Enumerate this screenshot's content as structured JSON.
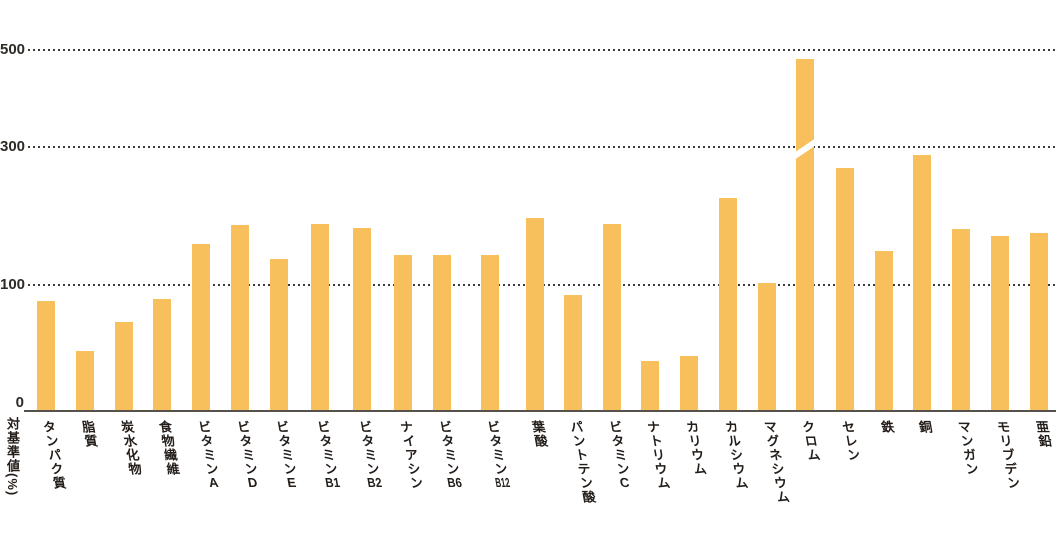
{
  "chart_data": {
    "type": "bar",
    "title": "",
    "xlabel": "",
    "ylabel": "対基準値(%)",
    "categories": [
      "タンパク質",
      "脂質",
      "炭水化物",
      "食物繊維",
      "ビタミンA",
      "ビタミンD",
      "ビタミンE",
      "ビタミンB1",
      "ビタミンB2",
      "ナイアシン",
      "ビタミンB6",
      "ビタミンB12",
      "葉酸",
      "パントテン酸",
      "ビタミンC",
      "ナトリウム",
      "カリウム",
      "カルシウム",
      "マグネシウム",
      "クロム",
      "セレン",
      "鉄",
      "銅",
      "マンガン",
      "モリブデン",
      "亜鉛"
    ],
    "values": [
      87,
      48,
      71,
      89,
      159,
      187,
      137,
      188,
      183,
      143,
      143,
      143,
      197,
      92,
      188,
      40,
      44,
      226,
      103,
      481,
      270,
      149,
      288,
      181,
      171,
      176
    ],
    "y_ticks": [
      0,
      100,
      300,
      500
    ],
    "ylim": [
      0,
      500
    ],
    "grid": "horizontal dotted lines at 100, 300, 500; non-linear (compressed) spacing above 100",
    "legend_position": "none",
    "axis_break": {
      "category": "クロム",
      "index": 19,
      "note": "white diagonal break mark on bar near the 300 gridline"
    },
    "colors": {
      "bar": "#F8C05C",
      "gridline": "#3C3C3C",
      "axis_line": "#57514B",
      "tick_text": "#2E2A26",
      "label_text": "#241E1A",
      "background": "#FFFFFF"
    }
  }
}
